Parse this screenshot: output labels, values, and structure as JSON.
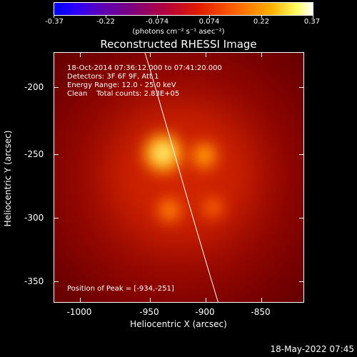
{
  "colorbar": {
    "ticks": [
      "-0.37",
      "-0.22",
      "-0.074",
      "0.074",
      "0.22",
      "0.37"
    ],
    "unit": "(photons cm⁻² s⁻¹ asec⁻²)"
  },
  "title": "Reconstructed RHESSI Image",
  "annotations": {
    "line1": "18-Oct-2014 07:36:12.000 to 07:41:20.000",
    "line2": "Detectors: 3F 6F 9F, Att 1",
    "line3": "Energy Range: 12.0 - 25.0 keV",
    "line4": "Clean    Total counts: 2.83E+05"
  },
  "peak": "Position of Peak = [-934,-251]",
  "axes": {
    "x_title": "Heliocentric X (arcsec)",
    "y_title": "Heliocentric Y (arcsec)",
    "x_ticks": [
      "-1000",
      "-950",
      "-900",
      "-850"
    ],
    "y_ticks": [
      "-200",
      "-250",
      "-300",
      "-350"
    ]
  },
  "timestamp": "18-May-2022 07:45"
}
